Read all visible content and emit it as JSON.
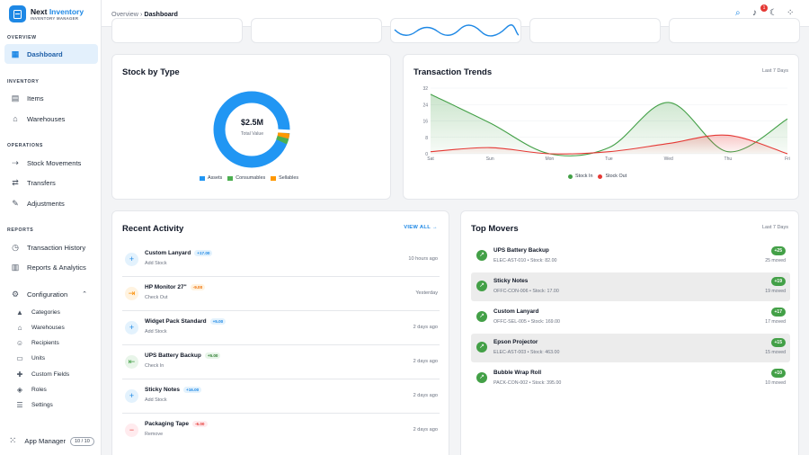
{
  "brand": {
    "name_a": "Next",
    "name_b": "Inventory",
    "subtitle": "INVENTORY MANAGER"
  },
  "sidebar": {
    "sections": {
      "overview": "OVERVIEW",
      "inventory": "INVENTORY",
      "operations": "OPERATIONS",
      "reports": "REPORTS"
    },
    "items": {
      "dashboard": "Dashboard",
      "items": "Items",
      "warehouses": "Warehouses",
      "stock_movements": "Stock Movements",
      "transfers": "Transfers",
      "adjustments": "Adjustments",
      "transaction_history": "Transaction History",
      "reports_analytics": "Reports & Analytics",
      "configuration": "Configuration"
    },
    "config_items": [
      "Categories",
      "Warehouses",
      "Recipients",
      "Units",
      "Custom Fields",
      "Roles",
      "Settings"
    ],
    "app_manager": {
      "label": "App Manager",
      "count": "10 / 10"
    }
  },
  "topbar": {
    "crumb_root": "Overview",
    "crumb_sep": "›",
    "crumb_current": "Dashboard",
    "notification_count": "1"
  },
  "stock_by_type": {
    "title": "Stock by Type",
    "total": "$2.5M",
    "total_label": "Total Value",
    "legend": [
      "Assets",
      "Consumables",
      "Sellables"
    ],
    "colors": {
      "Assets": "#2196f3",
      "Consumables": "#4caf50",
      "Sellables": "#ff9800"
    }
  },
  "transaction_trends": {
    "title": "Transaction Trends",
    "period": "Last 7 Days"
  },
  "recent_activity": {
    "title": "Recent Activity",
    "view_all": "VIEW ALL",
    "items": [
      {
        "name": "Custom Lanyard",
        "delta": "+17.00",
        "type": "Add Stock",
        "time": "10 hours ago",
        "kind": "add"
      },
      {
        "name": "HP Monitor 27\"",
        "delta": "-9.00",
        "type": "Check Out",
        "time": "Yesterday",
        "kind": "out"
      },
      {
        "name": "Widget Pack Standard",
        "delta": "+5.00",
        "type": "Add Stock",
        "time": "2 days ago",
        "kind": "add"
      },
      {
        "name": "UPS Battery Backup",
        "delta": "+5.00",
        "type": "Check In",
        "time": "2 days ago",
        "kind": "in"
      },
      {
        "name": "Sticky Notes",
        "delta": "+16.00",
        "type": "Add Stock",
        "time": "2 days ago",
        "kind": "add"
      },
      {
        "name": "Packaging Tape",
        "delta": "-6.00",
        "type": "Remove",
        "time": "2 days ago",
        "kind": "remove"
      }
    ]
  },
  "top_movers": {
    "title": "Top Movers",
    "period": "Last 7 Days",
    "items": [
      {
        "name": "UPS Battery Backup",
        "meta": "ELEC-AST-010 • Stock: 82.00",
        "chip": "+25",
        "moved": "25 moved"
      },
      {
        "name": "Sticky Notes",
        "meta": "OFFC-CON-006 • Stock: 17.00",
        "chip": "+19",
        "moved": "19 moved"
      },
      {
        "name": "Custom Lanyard",
        "meta": "OFFC-SEL-005 • Stock: 169.00",
        "chip": "+17",
        "moved": "17 moved"
      },
      {
        "name": "Epson Projector",
        "meta": "ELEC-AST-003 • Stock: 463.00",
        "chip": "+15",
        "moved": "15 moved"
      },
      {
        "name": "Bubble Wrap Roll",
        "meta": "PACK-CON-002 • Stock: 395.00",
        "chip": "+10",
        "moved": "10 moved"
      }
    ]
  },
  "chart_data": {
    "type": "area",
    "categories": [
      "Sat",
      "Sun",
      "Mon",
      "Tue",
      "Wed",
      "Thu",
      "Fri"
    ],
    "series": [
      {
        "name": "Stock In",
        "color": "#43a047",
        "values": [
          29,
          15,
          0,
          3,
          25,
          1,
          17
        ]
      },
      {
        "name": "Stock Out",
        "color": "#e53935",
        "values": [
          1,
          3,
          0,
          1,
          5,
          9,
          0
        ]
      }
    ],
    "ylim": [
      0,
      32
    ],
    "yticks": [
      0,
      8,
      16,
      24,
      32
    ],
    "grid": true,
    "legend_position": "bottom"
  }
}
